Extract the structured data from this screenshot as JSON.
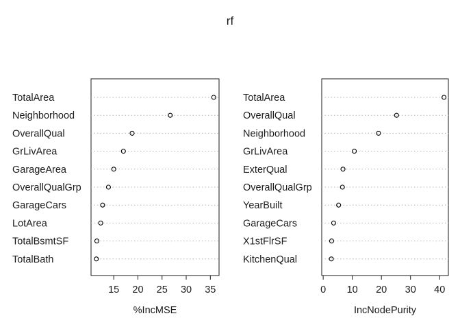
{
  "chart_data": {
    "title": "rf",
    "panels": [
      {
        "type": "scatter",
        "xlabel": "%IncMSE",
        "categories": [
          "TotalArea",
          "Neighborhood",
          "OverallQual",
          "GrLivArea",
          "GarageArea",
          "OverallQualGrp",
          "GarageCars",
          "LotArea",
          "TotalBsmtSF",
          "TotalBath"
        ],
        "values": [
          35.7,
          26.7,
          18.8,
          17.0,
          15.0,
          13.9,
          12.7,
          12.3,
          11.5,
          11.4
        ],
        "xlim": [
          10.3,
          36.8
        ],
        "xticks": [
          15,
          20,
          25,
          30,
          35
        ],
        "grid": "dotted horizontal"
      },
      {
        "type": "scatter",
        "xlabel": "IncNodePurity",
        "categories": [
          "TotalArea",
          "OverallQual",
          "Neighborhood",
          "GrLivArea",
          "ExterQual",
          "OverallQualGrp",
          "YearBuilt",
          "GarageCars",
          "X1stFlrSF",
          "KitchenQual"
        ],
        "values": [
          41.5,
          25.2,
          19.0,
          10.7,
          6.8,
          6.6,
          5.3,
          3.6,
          2.9,
          2.8
        ],
        "xlim": [
          -0.5,
          43.0
        ],
        "xticks": [
          0,
          10,
          20,
          30,
          40
        ],
        "grid": "dotted horizontal"
      }
    ]
  }
}
